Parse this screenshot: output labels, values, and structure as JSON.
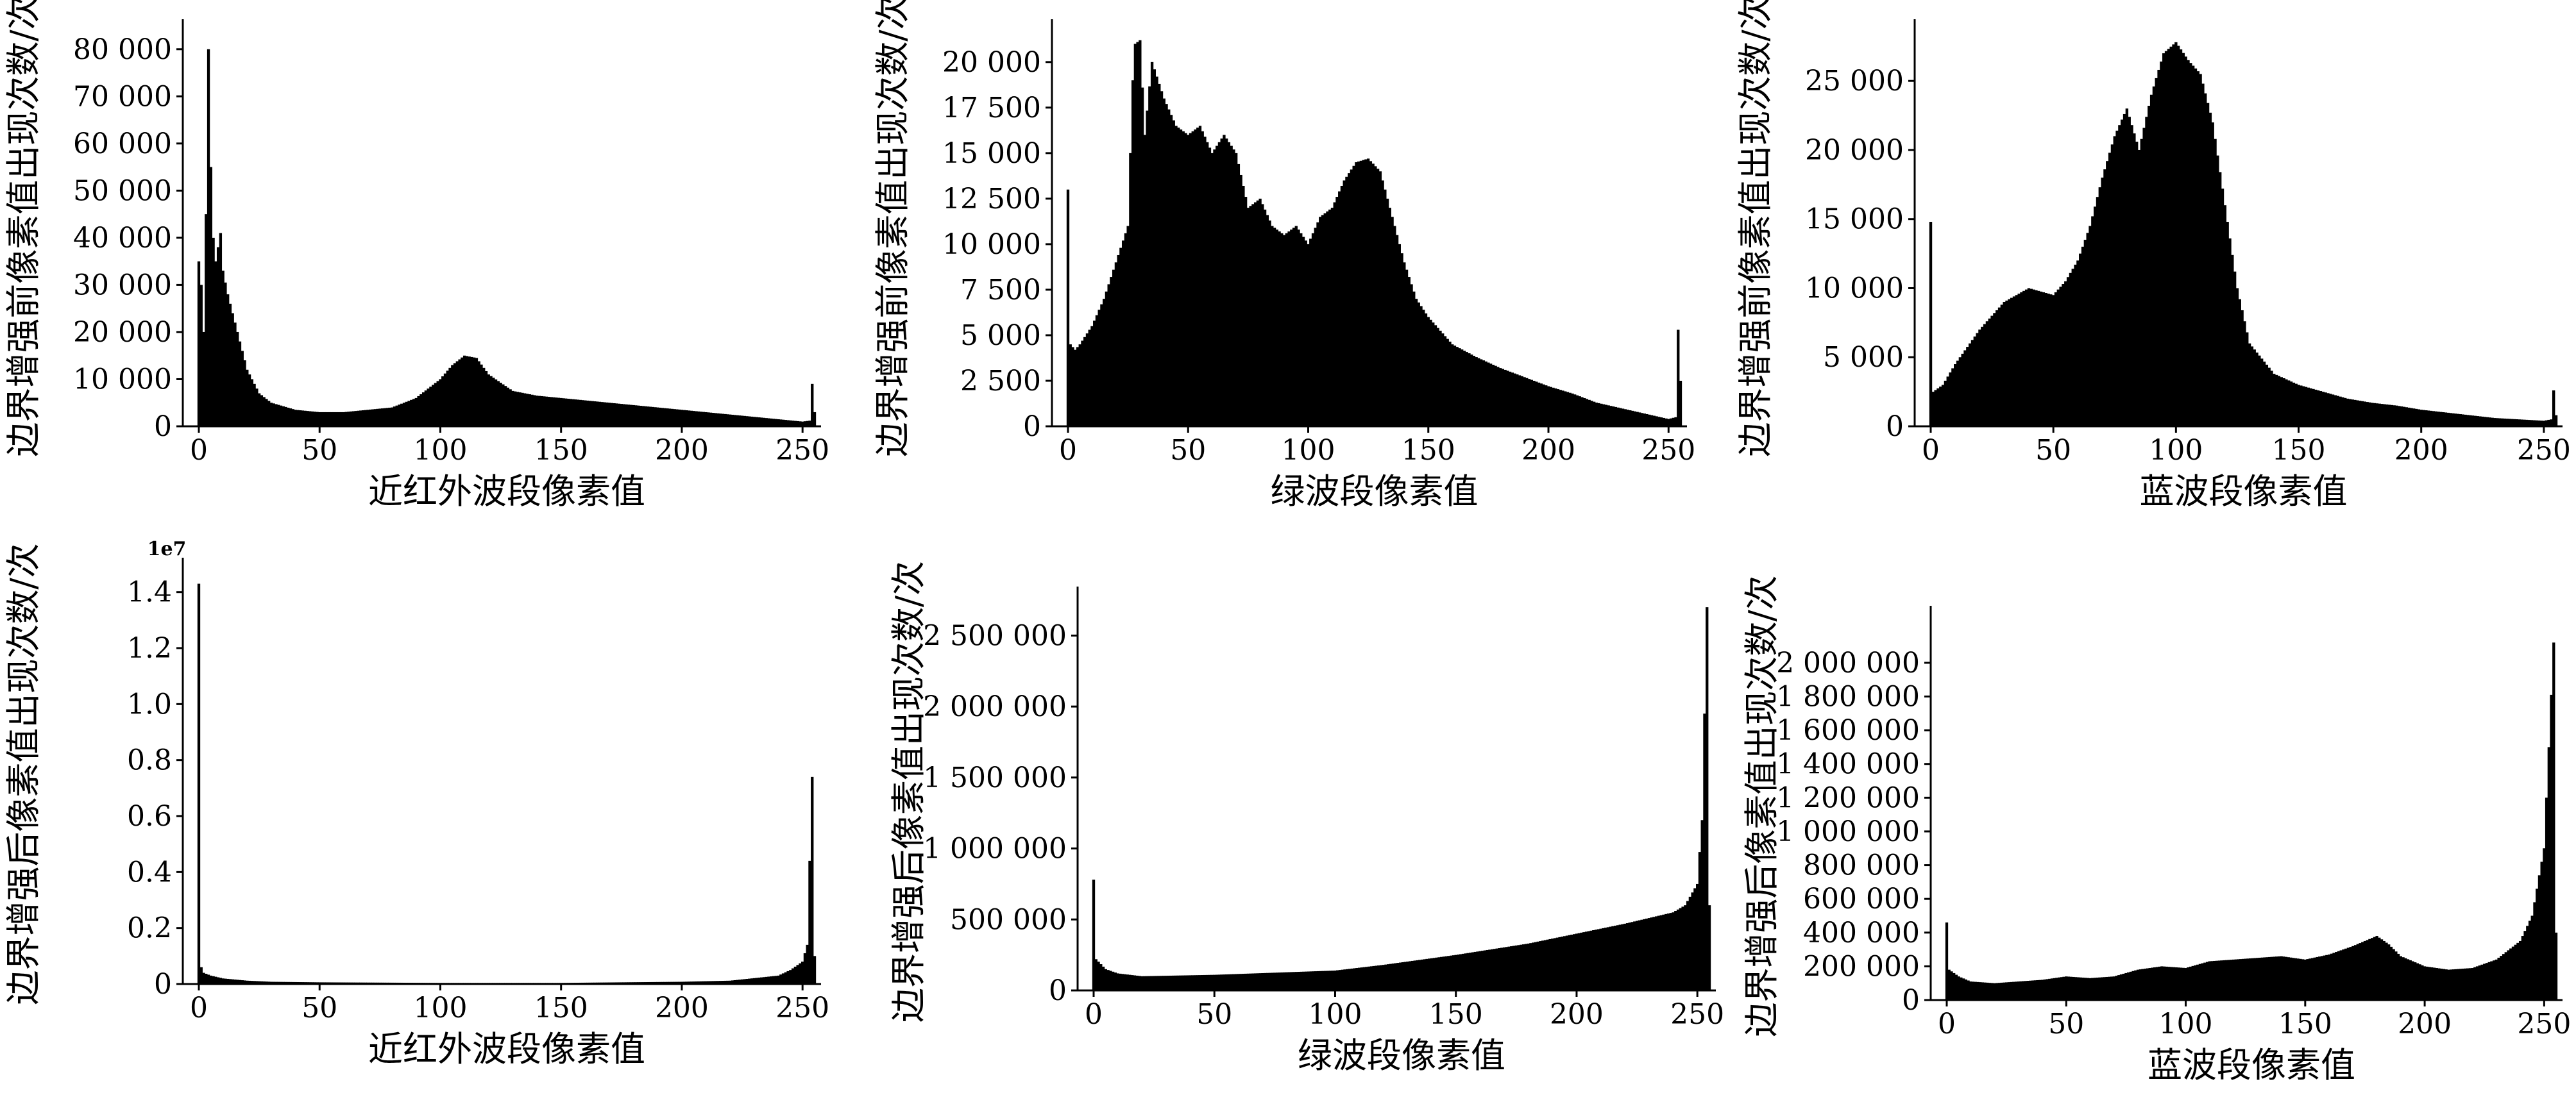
{
  "chart_data": [
    {
      "type": "bar",
      "xlabel": "近红外波段像素值",
      "ylabel": "边界增强前像素值出现次数/次",
      "xlim": [
        0,
        255
      ],
      "ylim": [
        0,
        85000
      ],
      "xticks": [
        0,
        50,
        100,
        150,
        200,
        250
      ],
      "xtick_labels": [
        "0",
        "50",
        "100",
        "150",
        "200",
        "250"
      ],
      "yticks": [
        0,
        10000,
        20000,
        30000,
        40000,
        50000,
        60000,
        70000,
        80000
      ],
      "ytick_labels": [
        "0",
        "10 000",
        "20 000",
        "30 000",
        "40 000",
        "50 000",
        "60 000",
        "70 000",
        "80 000"
      ],
      "x": [
        0,
        1,
        2,
        3,
        4,
        5,
        6,
        7,
        8,
        9,
        10,
        12,
        15,
        20,
        25,
        30,
        40,
        50,
        60,
        70,
        80,
        90,
        100,
        105,
        110,
        115,
        120,
        130,
        140,
        150,
        160,
        170,
        180,
        190,
        200,
        210,
        220,
        230,
        240,
        250,
        253,
        254,
        255
      ],
      "values": [
        35000,
        30000,
        20000,
        45000,
        80000,
        55000,
        40000,
        35000,
        38000,
        41000,
        33000,
        28000,
        22000,
        12000,
        7000,
        5000,
        3500,
        3000,
        3000,
        3500,
        4000,
        6000,
        10000,
        13000,
        15000,
        14500,
        11000,
        7500,
        6500,
        6000,
        5500,
        5000,
        4500,
        4000,
        3500,
        3000,
        2500,
        2000,
        1500,
        1000,
        1200,
        9000,
        3000
      ]
    },
    {
      "type": "bar",
      "xlabel": "绿波段像素值",
      "ylabel": "边界增强前像素值出现次数/次",
      "xlim": [
        0,
        255
      ],
      "ylim": [
        0,
        22000
      ],
      "xticks": [
        0,
        50,
        100,
        150,
        200,
        250
      ],
      "xtick_labels": [
        "0",
        "50",
        "100",
        "150",
        "200",
        "250"
      ],
      "yticks": [
        0,
        2500,
        5000,
        7500,
        10000,
        12500,
        15000,
        17500,
        20000
      ],
      "ytick_labels": [
        "0",
        "2 500",
        "5 000",
        "7 500",
        "10 000",
        "12 500",
        "15 000",
        "17 500",
        "20 000"
      ],
      "x": [
        0,
        1,
        3,
        5,
        10,
        15,
        20,
        25,
        27,
        28,
        30,
        32,
        35,
        40,
        45,
        50,
        55,
        60,
        65,
        70,
        75,
        80,
        85,
        90,
        95,
        100,
        105,
        110,
        115,
        120,
        125,
        130,
        135,
        140,
        145,
        150,
        160,
        170,
        180,
        190,
        200,
        210,
        220,
        230,
        240,
        250,
        253,
        254,
        255
      ],
      "values": [
        13000,
        4500,
        4200,
        4500,
        5500,
        7000,
        9000,
        11000,
        19000,
        21000,
        21200,
        16000,
        20000,
        18000,
        16500,
        16000,
        16500,
        15000,
        16000,
        15000,
        12000,
        12500,
        11000,
        10500,
        11000,
        10000,
        11500,
        12000,
        13500,
        14500,
        14700,
        14000,
        11500,
        9000,
        7000,
        6000,
        4500,
        3800,
        3200,
        2700,
        2200,
        1800,
        1300,
        1000,
        700,
        400,
        500,
        5300,
        2500
      ]
    },
    {
      "type": "bar",
      "xlabel": "蓝波段像素值",
      "ylabel": "边界增强前像素值出现次数/次",
      "xlim": [
        0,
        255
      ],
      "ylim": [
        0,
        29000
      ],
      "xticks": [
        0,
        50,
        100,
        150,
        200,
        250
      ],
      "xtick_labels": [
        "0",
        "50",
        "100",
        "150",
        "200",
        "250"
      ],
      "yticks": [
        0,
        5000,
        10000,
        15000,
        20000,
        25000
      ],
      "ytick_labels": [
        "0",
        "5 000",
        "10 000",
        "15 000",
        "20 000",
        "25 000"
      ],
      "x": [
        0,
        1,
        5,
        10,
        20,
        30,
        40,
        50,
        55,
        60,
        65,
        70,
        75,
        80,
        85,
        90,
        95,
        100,
        105,
        110,
        115,
        120,
        125,
        130,
        140,
        150,
        160,
        170,
        180,
        190,
        200,
        210,
        220,
        230,
        240,
        250,
        253,
        254,
        255
      ],
      "values": [
        14800,
        2500,
        3000,
        4500,
        7000,
        9000,
        10000,
        9500,
        10500,
        12000,
        14500,
        18000,
        21000,
        23000,
        20000,
        24000,
        27000,
        27800,
        26500,
        25500,
        22000,
        16000,
        10000,
        6000,
        3800,
        3000,
        2500,
        2000,
        1700,
        1500,
        1200,
        1000,
        800,
        600,
        500,
        400,
        500,
        2600,
        800
      ]
    },
    {
      "type": "bar",
      "xlabel": "近红外波段像素值",
      "ylabel": "边界增强后像素值出现次数/次",
      "scale_label": "1e7",
      "xlim": [
        0,
        255
      ],
      "ylim": [
        0,
        1.5
      ],
      "xticks": [
        0,
        50,
        100,
        150,
        200,
        250
      ],
      "xtick_labels": [
        "0",
        "50",
        "100",
        "150",
        "200",
        "250"
      ],
      "yticks": [
        0,
        0.2,
        0.4,
        0.6,
        0.8,
        1.0,
        1.2,
        1.4
      ],
      "ytick_labels": [
        "0",
        "0.2",
        "0.4",
        "0.6",
        "0.8",
        "1.0",
        "1.2",
        "1.4"
      ],
      "x": [
        0,
        1,
        2,
        5,
        10,
        20,
        30,
        50,
        100,
        150,
        200,
        220,
        240,
        245,
        250,
        252,
        254,
        255
      ],
      "values": [
        1.43,
        0.06,
        0.04,
        0.03,
        0.02,
        0.012,
        0.008,
        0.006,
        0.004,
        0.004,
        0.008,
        0.012,
        0.03,
        0.05,
        0.08,
        0.14,
        0.74,
        0.1
      ]
    },
    {
      "type": "bar",
      "xlabel": "绿波段像素值",
      "ylabel": "边界增强后像素值出现次数/次",
      "xlim": [
        0,
        255
      ],
      "ylim": [
        0,
        2800000
      ],
      "xticks": [
        0,
        50,
        100,
        150,
        200,
        250
      ],
      "xtick_labels": [
        "0",
        "50",
        "100",
        "150",
        "200",
        "250"
      ],
      "yticks": [
        0,
        500000,
        1000000,
        1500000,
        2000000,
        2500000
      ],
      "ytick_labels": [
        "0",
        "500 000",
        "1 000 000",
        "1 500 000",
        "2 000 000",
        "2 500 000"
      ],
      "x": [
        0,
        1,
        5,
        10,
        20,
        50,
        100,
        120,
        150,
        180,
        200,
        220,
        240,
        245,
        250,
        252,
        254,
        255
      ],
      "values": [
        780000,
        220000,
        150000,
        120000,
        100000,
        110000,
        140000,
        180000,
        250000,
        330000,
        400000,
        470000,
        550000,
        600000,
        750000,
        1200000,
        2700000,
        600000
      ]
    },
    {
      "type": "bar",
      "xlabel": "蓝波段像素值",
      "ylabel": "边界增强后像素值出现次数/次",
      "xlim": [
        0,
        255
      ],
      "ylim": [
        0,
        2300000
      ],
      "xticks": [
        0,
        50,
        100,
        150,
        200,
        250
      ],
      "xtick_labels": [
        "0",
        "50",
        "100",
        "150",
        "200",
        "250"
      ],
      "yticks": [
        0,
        200000,
        400000,
        600000,
        800000,
        1000000,
        1200000,
        1400000,
        1600000,
        1800000,
        2000000
      ],
      "ytick_labels": [
        "0",
        "200 000",
        "400 000",
        "600 000",
        "800 000",
        "1 000 000",
        "1 200 000",
        "1 400 000",
        "1 600 000",
        "1 800 000",
        "2 000 000"
      ],
      "x": [
        0,
        1,
        5,
        10,
        20,
        30,
        40,
        50,
        60,
        70,
        80,
        90,
        100,
        110,
        120,
        130,
        140,
        150,
        160,
        170,
        175,
        180,
        185,
        190,
        200,
        210,
        220,
        230,
        240,
        245,
        250,
        252,
        254,
        255
      ],
      "values": [
        460000,
        180000,
        140000,
        110000,
        100000,
        110000,
        120000,
        140000,
        130000,
        140000,
        180000,
        200000,
        190000,
        230000,
        240000,
        250000,
        260000,
        240000,
        270000,
        320000,
        350000,
        380000,
        330000,
        260000,
        200000,
        180000,
        190000,
        240000,
        350000,
        500000,
        900000,
        1500000,
        2120000,
        400000
      ]
    }
  ]
}
